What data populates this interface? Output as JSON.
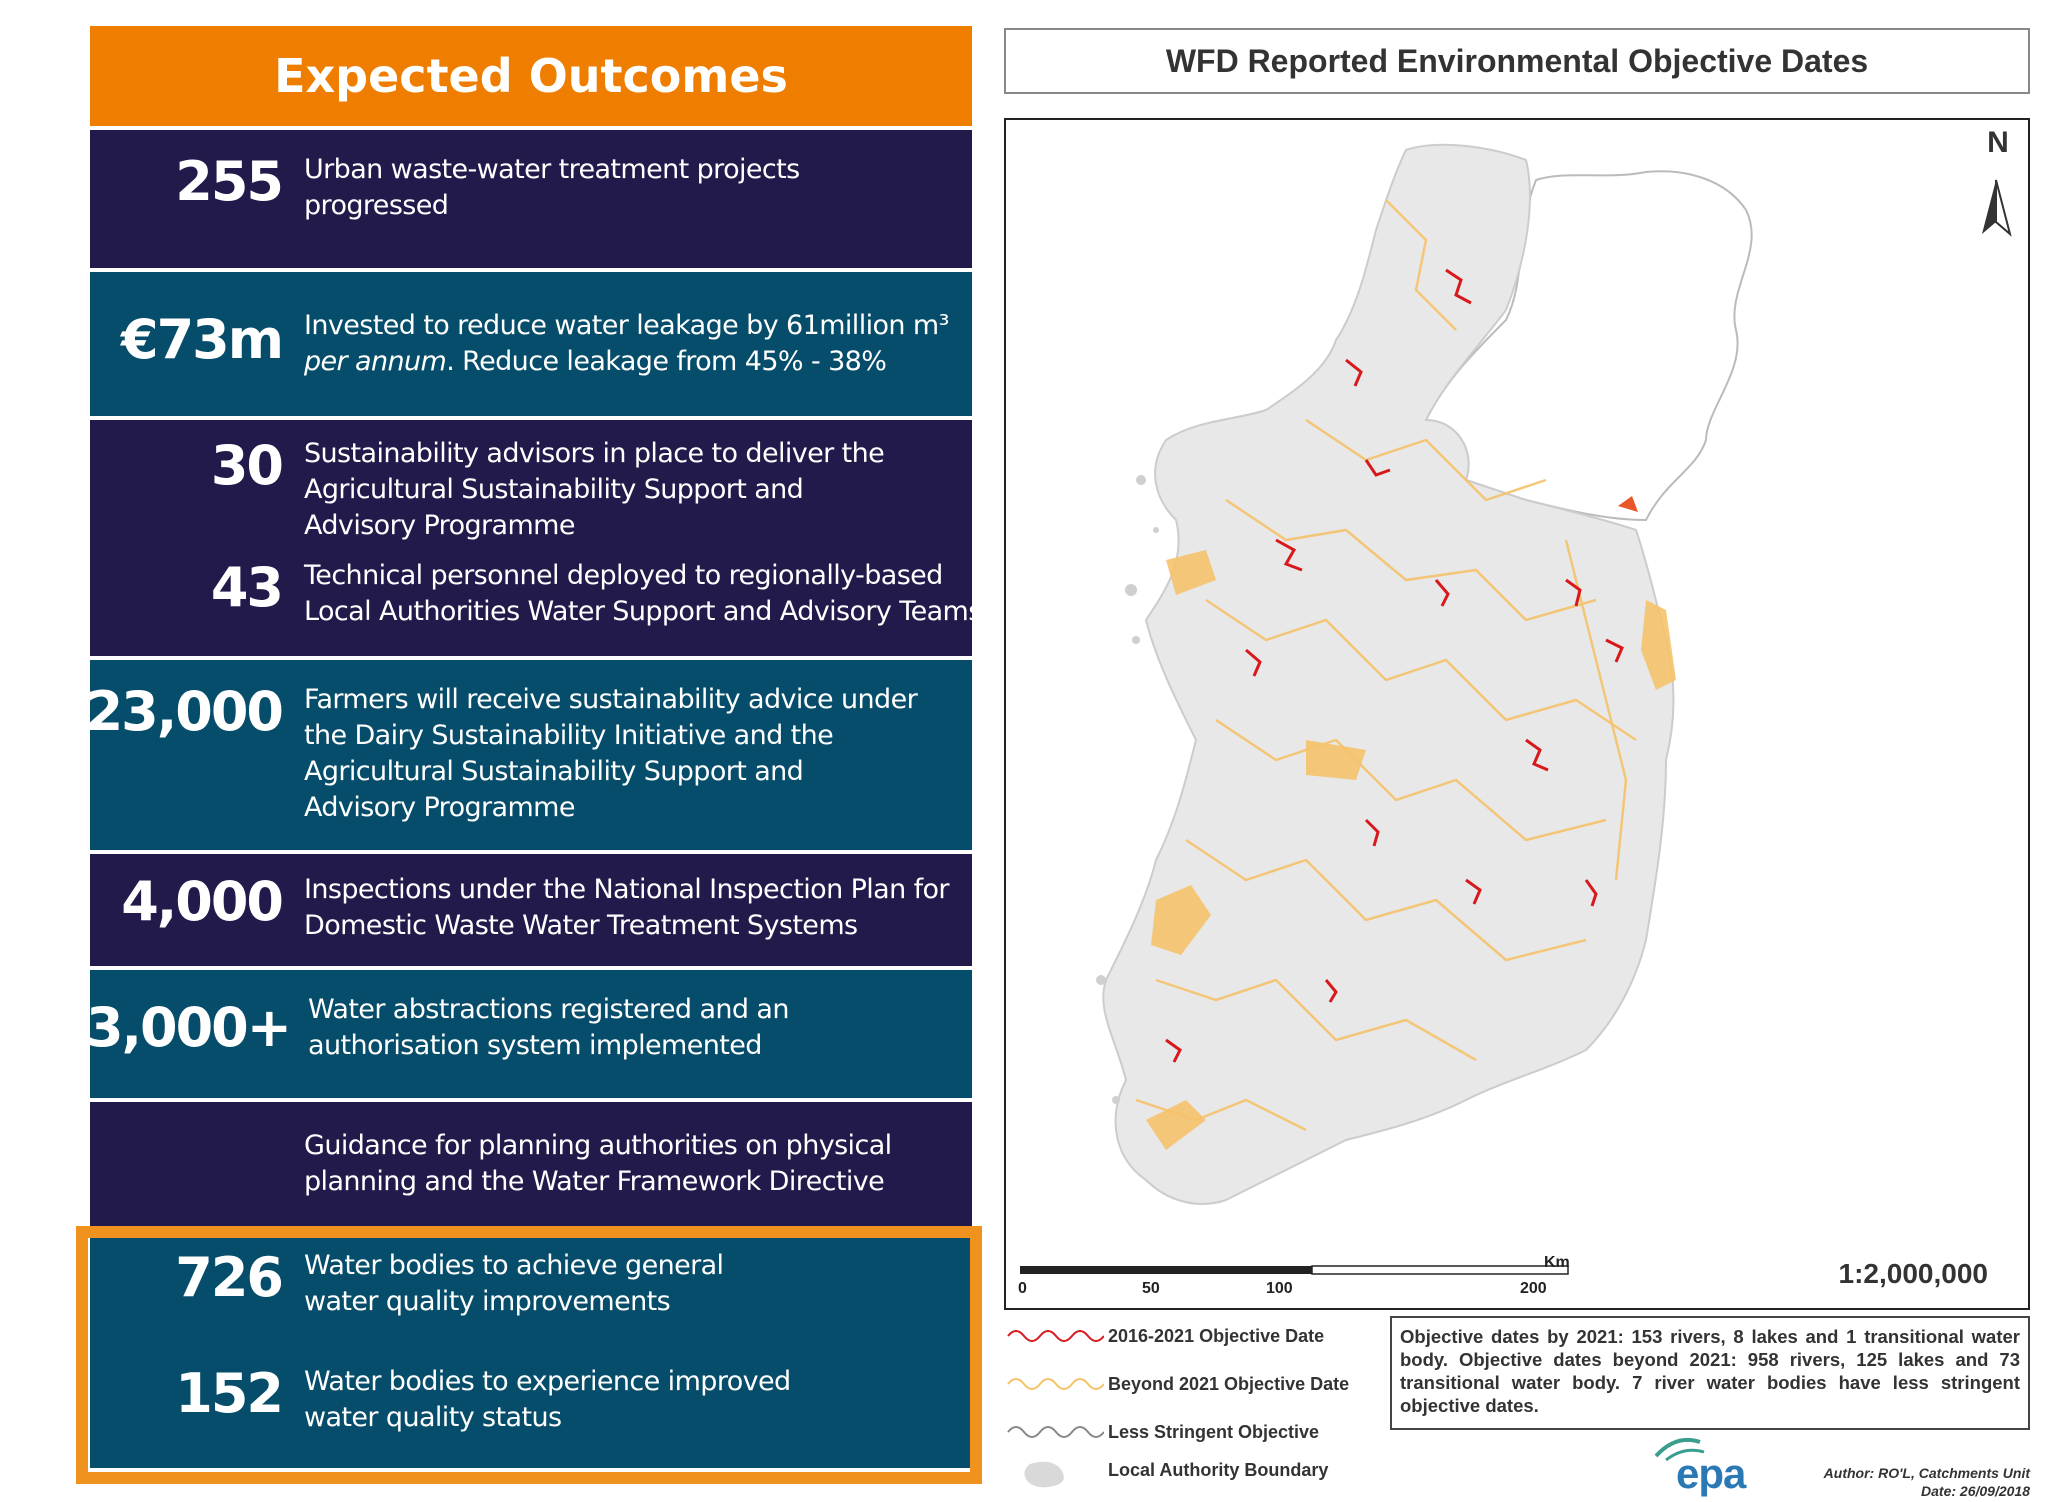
{
  "header": {
    "title": "Expected Outcomes"
  },
  "outcomes": [
    {
      "value": "255",
      "lines": [
        "Urban waste-water treatment projects",
        "progressed"
      ]
    },
    {
      "value": "€73m",
      "line1": "Invested to reduce water leakage by 61million m³",
      "line2_italic": "per annum",
      "line2_rest": ". Reduce leakage from 45% - 38%"
    },
    {
      "value": "30",
      "lines": [
        "Sustainability advisors in place to deliver the",
        "Agricultural Sustainability Support and",
        "Advisory Programme"
      ]
    },
    {
      "value": "43",
      "lines": [
        "Technical personnel deployed to regionally-based",
        "Local Authorities Water Support and Advisory Teams"
      ]
    },
    {
      "value": "23,000",
      "lines": [
        "Farmers will receive sustainability advice under",
        "the Dairy Sustainability Initiative and the",
        "Agricultural Sustainability Support and",
        "Advisory Programme"
      ]
    },
    {
      "value": "4,000",
      "lines": [
        "Inspections under the National Inspection Plan for",
        "Domestic Waste Water Treatment Systems"
      ]
    },
    {
      "value": "3,000+",
      "lines": [
        "Water abstractions registered and an",
        "authorisation system implemented"
      ]
    },
    {
      "value": "",
      "lines": [
        "Guidance for planning authorities on physical",
        "planning and the Water Framework Directive"
      ]
    },
    {
      "value": "726",
      "lines": [
        "Water bodies to achieve general",
        "water quality improvements"
      ]
    },
    {
      "value": "152",
      "lines": [
        "Water bodies to experience improved",
        "water quality status"
      ]
    }
  ],
  "map": {
    "title": "WFD Reported Environmental Objective Dates",
    "north_label": "N",
    "scale": {
      "unit": "Km",
      "ticks": [
        "0",
        "50",
        "100",
        "200"
      ],
      "ratio": "1:2,000,000"
    },
    "legend": [
      {
        "label": "2016-2021 Objective Date",
        "color": "#d7191c"
      },
      {
        "label": "Beyond 2021 Objective Date",
        "color": "#f5c26b"
      },
      {
        "label": "Less Stringent Objective",
        "color": "#888888"
      },
      {
        "label": "Local Authority Boundary",
        "color": "#d9d9d9"
      }
    ],
    "summary": "Objective dates by 2021: 153 rivers, 8 lakes and 1 transitional water body. Objective dates beyond 2021: 958 rivers, 125 lakes and 73 transitional water body. 7 river water bodies have less stringent objective dates.",
    "logo": "epa",
    "author": "Author: RO'L, Catchments Unit",
    "date": "Date: 26/09/2018"
  }
}
